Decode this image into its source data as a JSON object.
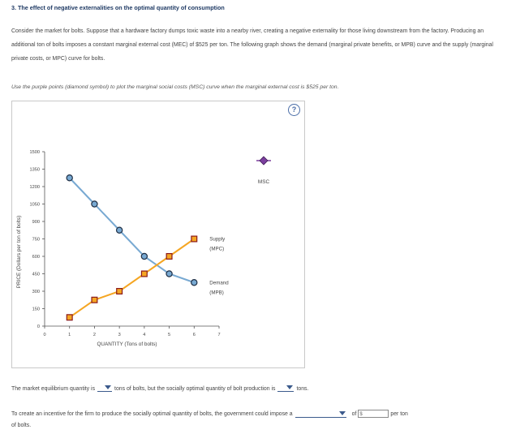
{
  "heading": "3. The effect of negative externalities on the optimal quantity of consumption",
  "intro": "Consider the market for bolts. Suppose that a hardware factory dumps toxic waste into a nearby river, creating a negative externality for those living downstream from the factory. Producing an additional ton of bolts imposes a constant marginal external cost (MEC) of $525 per ton. The following graph shows the demand (marginal private benefits, or MPB) curve and the supply (marginal private costs, or MPC) curve for bolts.",
  "instruction": "Use the purple points (diamond symbol) to plot the marginal social costs (MSC) curve when the marginal external cost is $525 per ton.",
  "help_symbol": "?",
  "chart_data": {
    "type": "line",
    "xlabel": "QUANTITY (Tons of bolts)",
    "ylabel": "PRICE (Dollars per ton of bolts)",
    "xlim": [
      0,
      7
    ],
    "ylim": [
      0,
      1500
    ],
    "xticks": [
      "0",
      "1",
      "2",
      "3",
      "4",
      "5",
      "6",
      "7"
    ],
    "yticks": [
      "0",
      "150",
      "300",
      "450",
      "600",
      "750",
      "900",
      "1050",
      "1200",
      "1350",
      "1500"
    ],
    "series": [
      {
        "name": "Demand (MPB)",
        "label_line1": "Demand",
        "label_line2": "(MPB)",
        "color": "#78a9d2",
        "marker": "circle",
        "x": [
          1,
          2,
          3,
          4,
          5,
          6
        ],
        "y": [
          1275,
          1050,
          825,
          600,
          450,
          375
        ]
      },
      {
        "name": "Supply (MPC)",
        "label_line1": "Supply",
        "label_line2": "(MPC)",
        "color": "#f5a623",
        "marker": "square",
        "x": [
          1,
          2,
          3,
          4,
          5,
          6
        ],
        "y": [
          75,
          225,
          300,
          450,
          600,
          750
        ]
      }
    ],
    "palette": {
      "name": "MSC",
      "color": "#7b3f9e",
      "marker": "diamond"
    }
  },
  "q1": {
    "prefix": "The market equilibrium quantity is",
    "middle": "tons of bolts, but the socially optimal quantity of bolt production is",
    "suffix": "tons."
  },
  "q2": {
    "prefix": "To create an incentive for the firm to produce the socially optimal quantity of bolts, the government could impose a",
    "of": "of",
    "dollar": "$",
    "suffix": "per ton"
  },
  "q3": {
    "text": "of bolts."
  }
}
